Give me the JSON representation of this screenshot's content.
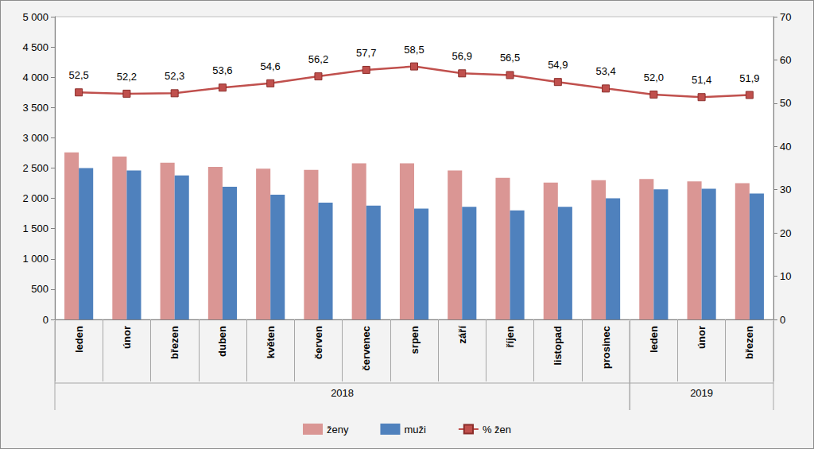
{
  "chart_data": {
    "type": "bar",
    "categories": [
      "leden",
      "únor",
      "březen",
      "duben",
      "květen",
      "červen",
      "červenec",
      "srpen",
      "září",
      "říjen",
      "listopad",
      "prosinec",
      "leden",
      "únor",
      "březen"
    ],
    "category_years": [
      "2018",
      "2018",
      "2018",
      "2018",
      "2018",
      "2018",
      "2018",
      "2018",
      "2018",
      "2018",
      "2018",
      "2018",
      "2019",
      "2019",
      "2019"
    ],
    "series": [
      {
        "name": "ženy",
        "type": "bar",
        "color": "#da9694",
        "values": [
          2760,
          2690,
          2590,
          2520,
          2490,
          2470,
          2580,
          2580,
          2460,
          2340,
          2260,
          2300,
          2320,
          2280,
          2250
        ]
      },
      {
        "name": "muži",
        "type": "bar",
        "color": "#4f81bd",
        "values": [
          2500,
          2460,
          2380,
          2190,
          2060,
          1930,
          1880,
          1830,
          1860,
          1800,
          1860,
          2000,
          2150,
          2160,
          2080
        ]
      },
      {
        "name": "% žen",
        "type": "line",
        "axis": "y2",
        "color": "#c0504d",
        "marker": "square",
        "data_labels": true,
        "values": [
          52.5,
          52.2,
          52.3,
          53.6,
          54.6,
          56.2,
          57.7,
          58.5,
          56.9,
          56.5,
          54.9,
          53.4,
          52.0,
          51.4,
          51.9
        ],
        "value_labels": [
          "52,5",
          "52,2",
          "52,3",
          "53,6",
          "54,6",
          "56,2",
          "57,7",
          "58,5",
          "56,9",
          "56,5",
          "54,9",
          "53,4",
          "52,0",
          "51,4",
          "51,9"
        ]
      }
    ],
    "ylim": [
      0,
      5000
    ],
    "yticks": [
      0,
      500,
      {
        "value": 1000,
        "label": "1 000"
      },
      {
        "value": 1500,
        "label": "1 500"
      },
      {
        "value": 2000,
        "label": "2 000"
      },
      {
        "value": 2500,
        "label": "2 500"
      },
      {
        "value": 3000,
        "label": "3 000"
      },
      {
        "value": 3500,
        "label": "3 500"
      },
      {
        "value": 4000,
        "label": "4 000"
      },
      {
        "value": 4500,
        "label": "4 500"
      },
      {
        "value": 5000,
        "label": "5 000"
      }
    ],
    "y2lim": [
      0,
      70
    ],
    "y2ticks": [
      0,
      10,
      20,
      30,
      40,
      50,
      60,
      70
    ],
    "grid": false,
    "legend": "bottom"
  }
}
